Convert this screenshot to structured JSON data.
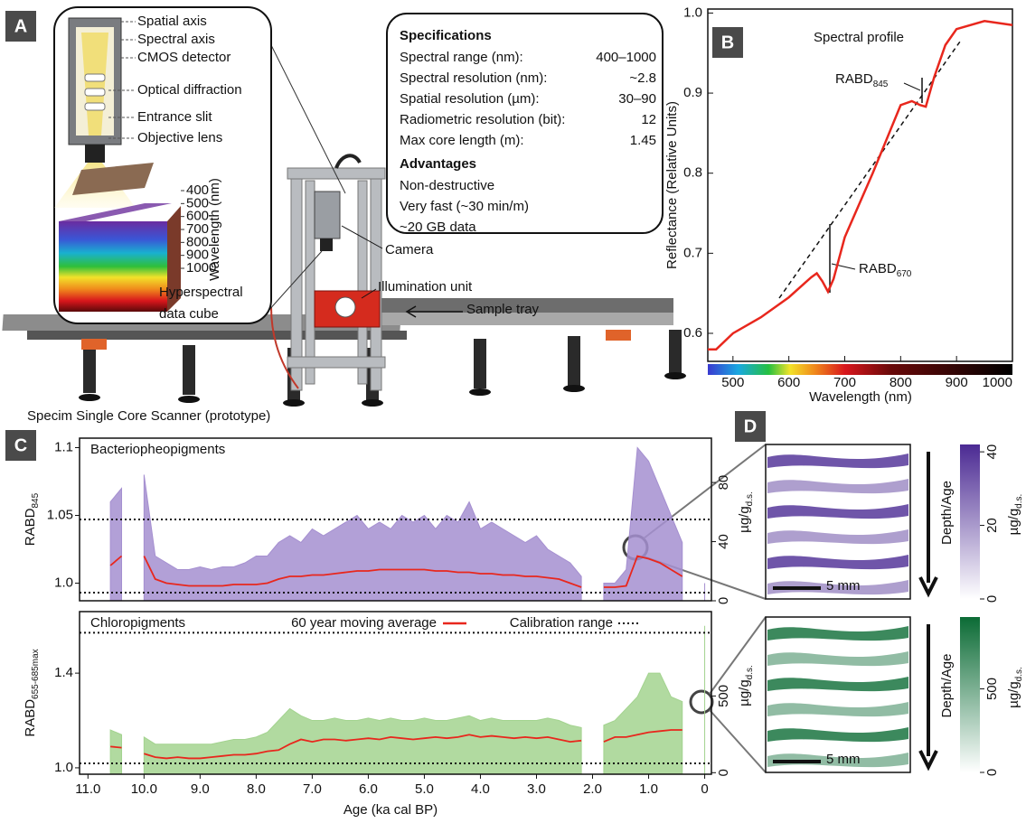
{
  "panel_a": {
    "letter": "A",
    "parts": [
      "Spatial axis",
      "Spectral axis",
      "CMOS detector",
      "Optical diffraction",
      "Entrance slit",
      "Objective lens"
    ],
    "cube_axis_label": "Wavelength (nm)",
    "cube_ticks": [
      400,
      500,
      600,
      700,
      800,
      900,
      1000
    ],
    "cube_label": [
      "Hyperspectral",
      "data cube"
    ],
    "scanner_labels": [
      "Camera",
      "Illumination unit",
      "Sample tray"
    ],
    "caption": "Specim Single Core Scanner (prototype)"
  },
  "specs": {
    "title": "Specifications",
    "rows": [
      [
        "Spectral range (nm):",
        "400–1000"
      ],
      [
        "Spectral resolution (nm):",
        "~2.8"
      ],
      [
        "Spatial resolution (µm):",
        "30–90"
      ],
      [
        "Radiometric resolution (bit):",
        "12"
      ],
      [
        "Max core length (m):",
        "1.45"
      ]
    ],
    "advantages_title": "Advantages",
    "advantages": [
      "Non-destructive",
      "Very fast (~30 min/m)",
      "~20 GB data"
    ]
  },
  "panel_b": {
    "letter": "B",
    "chart_data": {
      "type": "line",
      "title": "Spectral profile",
      "x_label": "Wavelength (nm)",
      "y_label": "Reflectance (Relative Units)",
      "x": [
        455,
        470,
        500,
        550,
        600,
        640,
        650,
        660,
        670,
        680,
        700,
        750,
        800,
        820,
        835,
        845,
        860,
        880,
        900,
        950,
        1000
      ],
      "values": [
        0.58,
        0.58,
        0.6,
        0.62,
        0.645,
        0.67,
        0.675,
        0.665,
        0.652,
        0.668,
        0.72,
        0.8,
        0.885,
        0.89,
        0.885,
        0.883,
        0.92,
        0.96,
        0.98,
        0.99,
        0.985
      ],
      "color": "#e8271d",
      "xlim": [
        455,
        1000
      ],
      "ylim": [
        0.565,
        1.005
      ],
      "xticks": [
        500,
        600,
        700,
        800,
        900,
        1000
      ],
      "yticks": [
        0.6,
        0.7,
        0.8,
        0.9,
        {
          "value": 1,
          "label": "1.0"
        }
      ],
      "annotations": [
        {
          "text": "RABD",
          "sub": "845"
        },
        {
          "text": "RABD",
          "sub": "670"
        }
      ]
    }
  },
  "panel_c": {
    "letter": "C",
    "x_label": "Age (ka cal BP)",
    "xlim": [
      11.15,
      -0.12
    ],
    "xticks": [
      {
        "value": 11,
        "label": "11.0"
      },
      {
        "value": 10,
        "label": "10.0"
      },
      {
        "value": 9,
        "label": "9.0"
      },
      {
        "value": 8,
        "label": "8.0"
      },
      {
        "value": 7,
        "label": "7.0"
      },
      {
        "value": 6,
        "label": "6.0"
      },
      {
        "value": 5,
        "label": "5.0"
      },
      {
        "value": 4,
        "label": "4.0"
      },
      {
        "value": 3,
        "label": "3.0"
      },
      {
        "value": 2,
        "label": "2.0"
      },
      {
        "value": 1,
        "label": "1.0"
      },
      0
    ],
    "x": [
      10.6,
      10.4,
      10.2,
      10.0,
      9.8,
      9.6,
      9.4,
      9.2,
      9.0,
      8.8,
      8.6,
      8.4,
      8.2,
      8.0,
      7.8,
      7.6,
      7.4,
      7.2,
      7.0,
      6.8,
      6.6,
      6.4,
      6.2,
      6.0,
      5.8,
      5.6,
      5.4,
      5.2,
      5.0,
      4.8,
      4.6,
      4.4,
      4.2,
      4.0,
      3.8,
      3.6,
      3.4,
      3.2,
      3.0,
      2.8,
      2.6,
      2.4,
      2.2,
      2.0,
      1.8,
      1.6,
      1.4,
      1.2,
      1.0,
      0.8,
      0.6,
      0.4,
      0.2,
      0.0
    ],
    "charts": [
      {
        "type": "line",
        "title": "Bacteriopheopigments",
        "y_label": {
          "text": "RABD",
          "sub": "845"
        },
        "y2_label": {
          "text": "µg/g",
          "sub": "d.s."
        },
        "ylim": [
          0.987,
          1.107
        ],
        "yticks": [
          {
            "value": 1,
            "label": "1.0"
          },
          1.05,
          1.1
        ],
        "y2lim": [
          0,
          110
        ],
        "y2ticks": [
          0,
          40,
          80
        ],
        "calibration": [
          0.993,
          1.047
        ],
        "series": [
          {
            "color": "#a58fd0",
            "values": [
              1.06,
              1.07,
              null,
              1.08,
              1.02,
              1.015,
              1.01,
              1.01,
              1.012,
              1.01,
              1.012,
              1.012,
              1.015,
              1.02,
              1.02,
              1.03,
              1.035,
              1.03,
              1.04,
              1.035,
              1.04,
              1.045,
              1.05,
              1.04,
              1.045,
              1.04,
              1.05,
              1.045,
              1.05,
              1.04,
              1.05,
              1.045,
              1.06,
              1.04,
              1.045,
              1.04,
              1.035,
              1.03,
              1.035,
              1.025,
              1.02,
              1.015,
              1.005,
              null,
              1.0,
              1.0,
              1.01,
              1.1,
              1.09,
              1.07,
              1.05,
              1.03,
              null,
              1.0
            ]
          },
          {
            "color": "#e8271d",
            "values": [
              1.013,
              1.02,
              null,
              1.02,
              1.003,
              1.0,
              0.999,
              0.998,
              0.998,
              0.998,
              0.998,
              0.999,
              0.999,
              0.999,
              1.0,
              1.003,
              1.005,
              1.005,
              1.006,
              1.006,
              1.007,
              1.008,
              1.009,
              1.009,
              1.01,
              1.01,
              1.01,
              1.01,
              1.01,
              1.009,
              1.009,
              1.008,
              1.008,
              1.007,
              1.007,
              1.006,
              1.006,
              1.005,
              1.005,
              1.004,
              1.003,
              1.0,
              0.997,
              null,
              0.997,
              0.997,
              0.998,
              1.02,
              1.018,
              1.015,
              1.01,
              1.005,
              null,
              0.997
            ]
          }
        ]
      },
      {
        "type": "line",
        "title": "Chloropigments",
        "y_label": {
          "text": "RABD",
          "sub": "655-685max"
        },
        "y2_label": {
          "text": "µg/g",
          "sub": "d.s."
        },
        "ylim": [
          0.973,
          1.66
        ],
        "yticks": [
          {
            "value": 1,
            "label": "1.0"
          },
          1.4
        ],
        "y2lim": [
          -10,
          1050
        ],
        "y2ticks": [
          0,
          500
        ],
        "calibration": [
          1.019,
          1.571
        ],
        "calibration_label": "Calibration range",
        "series": [
          {
            "color": "#a3d38f",
            "values": [
              1.16,
              1.14,
              null,
              1.13,
              1.1,
              1.1,
              1.1,
              1.1,
              1.1,
              1.1,
              1.11,
              1.12,
              1.12,
              1.13,
              1.15,
              1.2,
              1.25,
              1.22,
              1.2,
              1.2,
              1.21,
              1.2,
              1.2,
              1.21,
              1.2,
              1.21,
              1.2,
              1.2,
              1.21,
              1.2,
              1.2,
              1.21,
              1.22,
              1.2,
              1.21,
              1.2,
              1.2,
              1.2,
              1.2,
              1.21,
              1.2,
              1.18,
              1.17,
              null,
              1.18,
              1.2,
              1.25,
              1.3,
              1.4,
              1.4,
              1.3,
              1.28,
              null,
              1.6
            ]
          },
          {
            "name": "60 year moving average",
            "color": "#e8271d",
            "values": [
              1.09,
              1.085,
              null,
              1.06,
              1.045,
              1.04,
              1.045,
              1.04,
              1.04,
              1.045,
              1.05,
              1.055,
              1.055,
              1.06,
              1.07,
              1.075,
              1.1,
              1.12,
              1.11,
              1.12,
              1.12,
              1.115,
              1.12,
              1.125,
              1.12,
              1.13,
              1.125,
              1.12,
              1.125,
              1.13,
              1.125,
              1.13,
              1.14,
              1.13,
              1.135,
              1.13,
              1.125,
              1.13,
              1.125,
              1.13,
              1.12,
              1.11,
              1.115,
              null,
              1.11,
              1.13,
              1.13,
              1.14,
              1.15,
              1.155,
              1.16,
              1.16,
              null,
              1.12
            ]
          }
        ]
      }
    ]
  },
  "panel_d": {
    "letter": "D",
    "images": [
      {
        "scale_label": "5 mm",
        "arrow_label": "Depth/Age",
        "unit": {
          "text": "µg/g",
          "sub": "d.s."
        },
        "colors": [
          "#ffffff",
          "#4b2a93"
        ],
        "lim": [
          0,
          42
        ],
        "ticks": [
          0,
          20,
          40
        ]
      },
      {
        "scale_label": "5 mm",
        "arrow_label": "Depth/Age",
        "unit": {
          "text": "µg/g",
          "sub": "d.s."
        },
        "colors": [
          "#ffffff",
          "#0b6b35"
        ],
        "lim": [
          0,
          930
        ],
        "ticks": [
          0,
          500
        ]
      }
    ]
  }
}
